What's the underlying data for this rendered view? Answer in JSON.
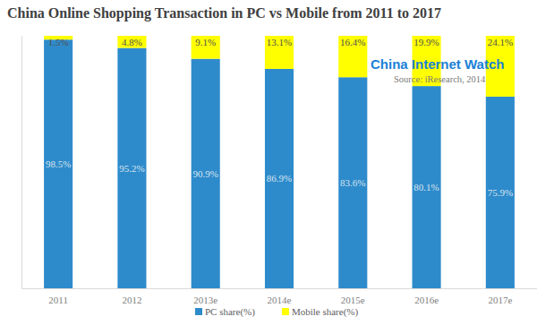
{
  "chart_data": {
    "type": "bar",
    "title": "China Online Shopping Transaction in PC vs Mobile from 2011 to 2017",
    "annotations": [
      "China Internet Watch",
      "Source: iResearch, 2014"
    ],
    "categories": [
      "2011",
      "2012",
      "2013e",
      "2014e",
      "2015e",
      "2016e",
      "2017e"
    ],
    "series": [
      {
        "name": "PC share(%)",
        "color": "#2e8bcb",
        "values": [
          98.5,
          95.2,
          90.9,
          86.9,
          83.6,
          80.1,
          75.9
        ],
        "value_labels": [
          "98.5%",
          "95.2%",
          "90.9%",
          "86.9%",
          "83.6%",
          "80.1%",
          "75.9%"
        ]
      },
      {
        "name": "Mobile share(%)",
        "color": "#ffff00",
        "values": [
          1.5,
          4.8,
          9.1,
          13.1,
          16.4,
          19.9,
          24.1
        ],
        "value_labels": [
          "1.5%",
          "4.8%",
          "9.1%",
          "13.1%",
          "16.4%",
          "19.9%",
          "24.1%"
        ]
      }
    ],
    "ylim": [
      0,
      100
    ],
    "stacked": true,
    "data_labels": true,
    "tick_labels": "x",
    "grid": false,
    "legend": "bottom"
  }
}
